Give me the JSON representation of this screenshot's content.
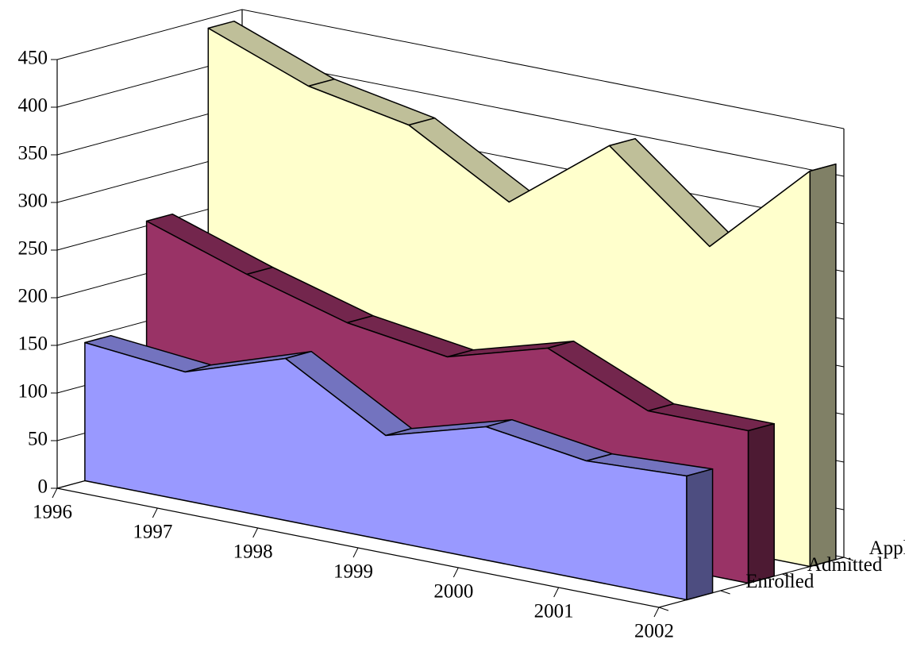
{
  "chart_data": {
    "type": "area3d",
    "categories": [
      "1996",
      "1997",
      "1998",
      "1999",
      "2000",
      "2001",
      "2002"
    ],
    "series": [
      {
        "name": "Enrolled",
        "color": "#9999ff",
        "values": [
          145,
          135,
          170,
          110,
          140,
          125,
          130
        ]
      },
      {
        "name": "Admitted",
        "color": "#993366",
        "values": [
          255,
          220,
          190,
          175,
          205,
          160,
          160
        ]
      },
      {
        "name": "Applied",
        "color": "#ffffcc",
        "values": [
          440,
          400,
          380,
          320,
          400,
          315,
          415
        ]
      }
    ],
    "ylim": [
      0,
      450
    ],
    "yticks": [
      0,
      50,
      100,
      150,
      200,
      250,
      300,
      350,
      400,
      450
    ],
    "grid": true
  }
}
